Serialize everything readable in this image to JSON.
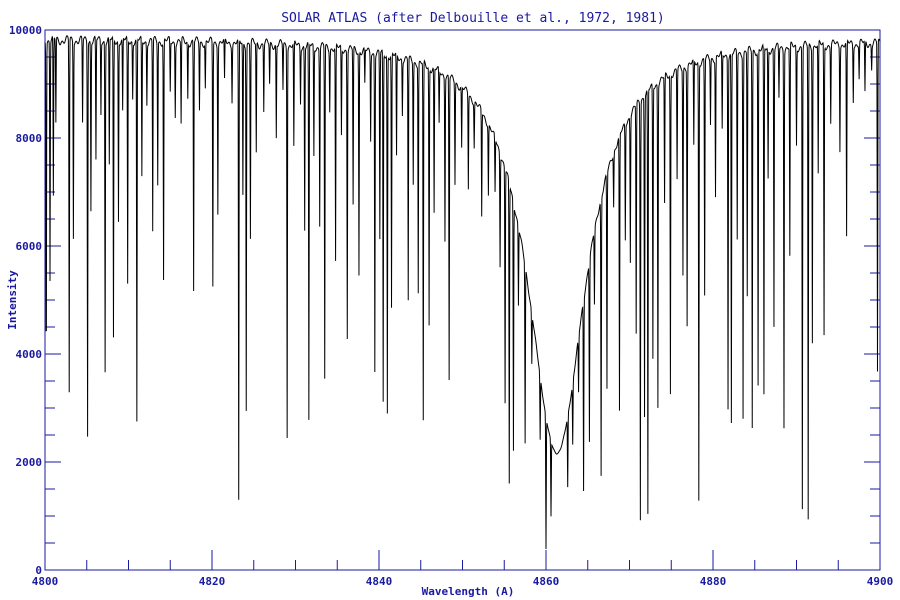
{
  "chart_data": {
    "type": "line",
    "title": "SOLAR ATLAS (after Delbouille et al., 1972, 1981)",
    "xlabel": "Wavelength (A)",
    "ylabel": "Intensity",
    "xlim": [
      4800,
      4900
    ],
    "ylim": [
      0,
      10000
    ],
    "x_ticks": [
      4800,
      4820,
      4840,
      4860,
      4880,
      4900
    ],
    "y_ticks": [
      0,
      2000,
      4000,
      6000,
      8000,
      10000
    ],
    "x_tick_labels": [
      "4800",
      "4820",
      "4840",
      "4860",
      "4880",
      "4900"
    ],
    "y_tick_labels": [
      "0",
      "2000",
      "4000",
      "6000",
      "8000",
      "10000"
    ],
    "grid": false,
    "series": [
      {
        "color": "#000000",
        "continuum_level": 9850,
        "broad_profile": {
          "center": 4861.3,
          "depth": 0.78,
          "width": 4.2
        },
        "absorption_lines": [
          [
            4800.15,
            3700
          ],
          [
            4800.6,
            5400
          ],
          [
            4801.0,
            6900
          ],
          [
            4801.3,
            8300
          ],
          [
            4802.9,
            3300
          ],
          [
            4803.4,
            6200
          ],
          [
            4804.5,
            8300
          ],
          [
            4805.1,
            2500
          ],
          [
            4805.5,
            6700
          ],
          [
            4806.1,
            7600
          ],
          [
            4806.7,
            8500
          ],
          [
            4807.2,
            3700
          ],
          [
            4807.7,
            7500
          ],
          [
            4808.2,
            4300
          ],
          [
            4808.8,
            6500
          ],
          [
            4809.3,
            8500
          ],
          [
            4809.9,
            5300
          ],
          [
            4810.5,
            8800
          ],
          [
            4811.0,
            2750
          ],
          [
            4811.6,
            7300
          ],
          [
            4812.2,
            8700
          ],
          [
            4812.9,
            6300
          ],
          [
            4813.5,
            7200
          ],
          [
            4814.2,
            5400
          ],
          [
            4815.0,
            8900
          ],
          [
            4815.6,
            8500
          ],
          [
            4816.3,
            8300
          ],
          [
            4817.1,
            8800
          ],
          [
            4817.8,
            5200
          ],
          [
            4818.5,
            8600
          ],
          [
            4819.2,
            9000
          ],
          [
            4820.1,
            5300
          ],
          [
            4820.7,
            6700
          ],
          [
            4821.5,
            9100
          ],
          [
            4822.4,
            8800
          ],
          [
            4823.2,
            1300
          ],
          [
            4823.7,
            7000
          ],
          [
            4824.1,
            3000
          ],
          [
            4824.6,
            6200
          ],
          [
            4825.3,
            7800
          ],
          [
            4826.2,
            8600
          ],
          [
            4826.9,
            9100
          ],
          [
            4827.7,
            8100
          ],
          [
            4828.5,
            9000
          ],
          [
            4829.0,
            2500
          ],
          [
            4829.8,
            7900
          ],
          [
            4830.6,
            8800
          ],
          [
            4831.1,
            6400
          ],
          [
            4831.6,
            2800
          ],
          [
            4832.2,
            7800
          ],
          [
            4832.9,
            6500
          ],
          [
            4833.5,
            3600
          ],
          [
            4834.1,
            8700
          ],
          [
            4834.8,
            5800
          ],
          [
            4835.5,
            8200
          ],
          [
            4836.2,
            4400
          ],
          [
            4836.9,
            6900
          ],
          [
            4837.6,
            5600
          ],
          [
            4838.3,
            9200
          ],
          [
            4839.0,
            8200
          ],
          [
            4839.5,
            3800
          ],
          [
            4840.1,
            6300
          ],
          [
            4840.5,
            3200
          ],
          [
            4841.0,
            3000
          ],
          [
            4841.5,
            5000
          ],
          [
            4842.1,
            7900
          ],
          [
            4842.8,
            8800
          ],
          [
            4843.5,
            5200
          ],
          [
            4844.1,
            7500
          ],
          [
            4844.7,
            5400
          ],
          [
            4845.3,
            2900
          ],
          [
            4846.0,
            4800
          ],
          [
            4846.6,
            7000
          ],
          [
            4847.2,
            8800
          ],
          [
            4847.9,
            6600
          ],
          [
            4848.4,
            3800
          ],
          [
            4849.1,
            7800
          ],
          [
            4849.9,
            8600
          ],
          [
            4850.7,
            7900
          ],
          [
            4851.4,
            8900
          ],
          [
            4852.3,
            7600
          ],
          [
            4853.1,
            8300
          ],
          [
            4853.9,
            8600
          ],
          [
            4854.5,
            7200
          ],
          [
            4855.1,
            4100
          ],
          [
            4855.6,
            2200
          ],
          [
            4856.1,
            3200
          ],
          [
            4856.7,
            7600
          ],
          [
            4857.5,
            4100
          ],
          [
            4858.3,
            7900
          ],
          [
            4859.3,
            6600
          ],
          [
            4860.0,
            1350
          ],
          [
            4860.6,
            4100
          ],
          [
            4862.6,
            5300
          ],
          [
            4863.2,
            6600
          ],
          [
            4863.9,
            7500
          ],
          [
            4864.5,
            2900
          ],
          [
            4865.2,
            4100
          ],
          [
            4865.8,
            7700
          ],
          [
            4866.6,
            2500
          ],
          [
            4867.3,
            4500
          ],
          [
            4868.1,
            8600
          ],
          [
            4868.8,
            3600
          ],
          [
            4869.5,
            7300
          ],
          [
            4870.1,
            6700
          ],
          [
            4870.8,
            5000
          ],
          [
            4871.3,
            1050
          ],
          [
            4871.8,
            3200
          ],
          [
            4872.2,
            1150
          ],
          [
            4872.8,
            4300
          ],
          [
            4873.4,
            3300
          ],
          [
            4874.2,
            7300
          ],
          [
            4874.9,
            3500
          ],
          [
            4875.7,
            7700
          ],
          [
            4876.4,
            5800
          ],
          [
            4876.9,
            4800
          ],
          [
            4877.7,
            8200
          ],
          [
            4878.3,
            1350
          ],
          [
            4879.0,
            5300
          ],
          [
            4879.7,
            8600
          ],
          [
            4880.3,
            7200
          ],
          [
            4881.1,
            8400
          ],
          [
            4881.8,
            3100
          ],
          [
            4882.2,
            2800
          ],
          [
            4882.9,
            6300
          ],
          [
            4883.6,
            2900
          ],
          [
            4884.1,
            5200
          ],
          [
            4884.7,
            2700
          ],
          [
            4885.4,
            3500
          ],
          [
            4886.1,
            3300
          ],
          [
            4886.6,
            7400
          ],
          [
            4887.3,
            4600
          ],
          [
            4887.9,
            8900
          ],
          [
            4888.5,
            2700
          ],
          [
            4889.2,
            5900
          ],
          [
            4890.0,
            8000
          ],
          [
            4890.7,
            1150
          ],
          [
            4891.4,
            950
          ],
          [
            4891.9,
            4300
          ],
          [
            4892.6,
            7400
          ],
          [
            4893.3,
            4400
          ],
          [
            4894.1,
            8400
          ],
          [
            4895.2,
            7900
          ],
          [
            4896.0,
            6200
          ],
          [
            4896.8,
            8800
          ],
          [
            4897.5,
            9200
          ],
          [
            4898.2,
            8900
          ],
          [
            4899.0,
            9400
          ],
          [
            4899.7,
            3700
          ]
        ]
      }
    ]
  }
}
